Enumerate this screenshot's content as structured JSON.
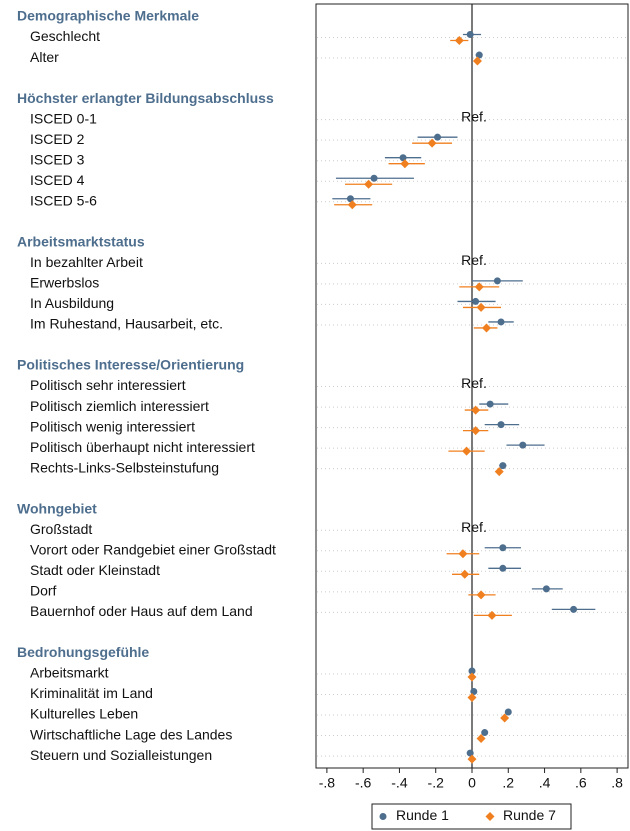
{
  "chart_data": {
    "type": "coefplot",
    "groups": [
      {
        "name": "Demographische Merkmale",
        "categories": [
          "Geschlecht",
          "Alter"
        ]
      },
      {
        "name": "Höchster erlangter Bildungsabschluss",
        "categories": [
          "ISCED 0-1",
          "ISCED 2",
          "ISCED 3",
          "ISCED 4",
          "ISCED 5-6"
        ],
        "note": "Ref."
      },
      {
        "name": "Arbeitsmarktstatus",
        "categories": [
          "In bezahlter Arbeit",
          "Erwerbslos",
          "In Ausbildung",
          "Im Ruhestand, Hausarbeit, etc."
        ],
        "note": "Ref."
      },
      {
        "name": "Politisches Interesse/Orientierung",
        "categories": [
          "Politisch sehr interessiert",
          "Politisch ziemlich interessiert",
          "Politisch wenig interessiert",
          "Politisch überhaupt nicht interessiert",
          "Rechts-Links-Selbsteinstufung"
        ],
        "note": "Ref."
      },
      {
        "name": "Wohngebiet",
        "categories": [
          "Großstadt",
          "Vorort oder Randgebiet einer Großstadt",
          "Stadt oder Kleinstadt",
          "Dorf",
          "Bauernhof oder Haus auf dem Land"
        ],
        "note": "Ref."
      },
      {
        "name": "Bedrohungsgefühle",
        "categories": [
          "Arbeitsmarkt",
          "Kriminalität im Land",
          "Kulturelles Leben",
          "Wirtschaftliche Lage des Landes",
          "Steuern und Sozialleistungen"
        ]
      }
    ],
    "series": [
      {
        "name": "Runde 1",
        "color": "#4e6e8e",
        "marker": "circle",
        "values": [
          -0.01,
          0.04,
          null,
          -0.19,
          -0.38,
          -0.54,
          -0.67,
          null,
          0.14,
          0.02,
          0.16,
          null,
          0.1,
          0.16,
          0.28,
          0.17,
          null,
          0.17,
          0.17,
          0.41,
          0.56,
          0.0,
          0.01,
          0.2,
          0.07,
          -0.01
        ],
        "lower": [
          -0.05,
          0.02,
          null,
          -0.3,
          -0.48,
          -0.75,
          -0.77,
          null,
          0,
          -0.08,
          0.09,
          null,
          0.04,
          0.07,
          0.19,
          0.15,
          null,
          0.07,
          0.09,
          0.33,
          0.44,
          -0.01,
          0.0,
          0.19,
          0.06,
          -0.02
        ],
        "upper": [
          0.05,
          0.05,
          null,
          -0.08,
          -0.28,
          -0.32,
          -0.56,
          null,
          0.28,
          0.13,
          0.23,
          null,
          0.2,
          0.26,
          0.4,
          0.19,
          null,
          0.27,
          0.27,
          0.5,
          0.68,
          0.01,
          0.02,
          0.21,
          0.08,
          0.0
        ]
      },
      {
        "name": "Runde 7",
        "color": "#f07f1f",
        "marker": "diamond",
        "values": [
          -0.07,
          0.03,
          null,
          -0.22,
          -0.37,
          -0.57,
          -0.66,
          null,
          0.04,
          0.05,
          0.08,
          null,
          0.02,
          0.02,
          -0.03,
          0.15,
          null,
          -0.05,
          -0.04,
          0.05,
          0.11,
          0.0,
          0.0,
          0.18,
          0.05,
          0.0
        ],
        "lower": [
          -0.12,
          0.01,
          null,
          -0.33,
          -0.46,
          -0.7,
          -0.76,
          null,
          -0.07,
          -0.05,
          0.01,
          null,
          -0.04,
          -0.05,
          -0.13,
          0.13,
          null,
          -0.14,
          -0.11,
          -0.02,
          0.01,
          -0.01,
          -0.01,
          0.17,
          0.04,
          -0.01
        ],
        "upper": [
          -0.02,
          0.05,
          null,
          -0.11,
          -0.26,
          -0.44,
          -0.55,
          null,
          0.15,
          0.16,
          0.14,
          null,
          0.09,
          0.09,
          0.07,
          0.17,
          null,
          0.04,
          0.04,
          0.13,
          0.22,
          0.01,
          0.01,
          0.19,
          0.06,
          0.01
        ]
      }
    ],
    "xlim": [
      -0.86,
      0.86
    ],
    "xticks": [
      {
        "value": -0.8,
        "label": "-.8"
      },
      {
        "value": -0.6,
        "label": "-.6"
      },
      {
        "value": -0.4,
        "label": "-.4"
      },
      {
        "value": -0.2,
        "label": "-.2"
      },
      0,
      {
        "value": 0.2,
        "label": ".2"
      },
      {
        "value": 0.4,
        "label": ".4"
      },
      {
        "value": 0.6,
        "label": ".6"
      },
      {
        "value": 0.8,
        "label": ".8"
      }
    ],
    "reference_line": 0,
    "grid": true
  }
}
